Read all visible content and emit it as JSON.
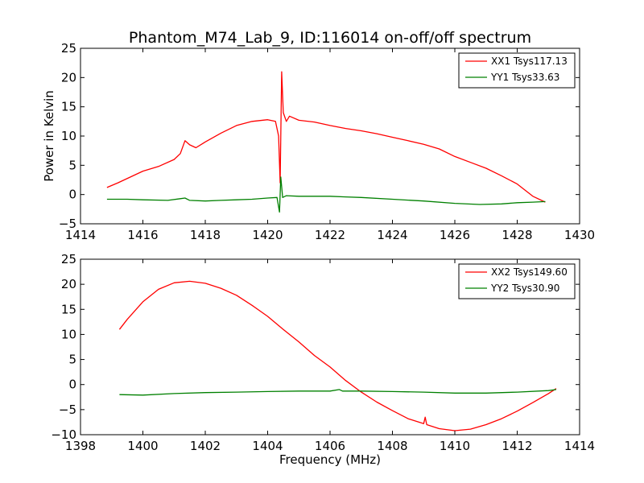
{
  "title": "Phantom_M74_Lab_9, ID:116014 on-off/off spectrum",
  "chart_data": [
    {
      "type": "line",
      "ylabel": "Power in Kelvin",
      "xlabel": "",
      "xlim": [
        1414,
        1430
      ],
      "ylim": [
        -5,
        25
      ],
      "xticks": [
        "1414",
        "1416",
        "1418",
        "1420",
        "1422",
        "1424",
        "1426",
        "1428",
        "1430"
      ],
      "yticks": [
        "−5",
        "0",
        "5",
        "10",
        "15",
        "20",
        "25"
      ],
      "legend_position": "top-right",
      "series": [
        {
          "name": "XX1 Tsys117.13",
          "color": "#ff0000",
          "points": [
            [
              1414.85,
              1.2
            ],
            [
              1415.2,
              2.0
            ],
            [
              1415.6,
              3.0
            ],
            [
              1416.0,
              4.0
            ],
            [
              1416.5,
              4.8
            ],
            [
              1417.0,
              6.0
            ],
            [
              1417.2,
              7.0
            ],
            [
              1417.35,
              9.2
            ],
            [
              1417.5,
              8.5
            ],
            [
              1417.7,
              8.0
            ],
            [
              1418.0,
              9.0
            ],
            [
              1418.5,
              10.5
            ],
            [
              1419.0,
              11.8
            ],
            [
              1419.5,
              12.5
            ],
            [
              1420.0,
              12.8
            ],
            [
              1420.25,
              12.5
            ],
            [
              1420.35,
              10.0
            ],
            [
              1420.4,
              2.0
            ],
            [
              1420.45,
              21.0
            ],
            [
              1420.5,
              14.0
            ],
            [
              1420.6,
              12.5
            ],
            [
              1420.7,
              13.4
            ],
            [
              1421.0,
              12.7
            ],
            [
              1421.5,
              12.4
            ],
            [
              1422.0,
              11.8
            ],
            [
              1422.5,
              11.3
            ],
            [
              1423.0,
              10.9
            ],
            [
              1423.5,
              10.4
            ],
            [
              1424.0,
              9.8
            ],
            [
              1424.5,
              9.2
            ],
            [
              1425.0,
              8.6
            ],
            [
              1425.5,
              7.8
            ],
            [
              1426.0,
              6.5
            ],
            [
              1426.5,
              5.5
            ],
            [
              1427.0,
              4.5
            ],
            [
              1427.5,
              3.2
            ],
            [
              1428.0,
              1.8
            ],
            [
              1428.5,
              -0.3
            ],
            [
              1428.9,
              -1.3
            ]
          ]
        },
        {
          "name": "YY1 Tsys33.63",
          "color": "#008000",
          "points": [
            [
              1414.85,
              -0.8
            ],
            [
              1415.5,
              -0.8
            ],
            [
              1416.0,
              -0.9
            ],
            [
              1416.8,
              -1.0
            ],
            [
              1417.2,
              -0.7
            ],
            [
              1417.35,
              -0.6
            ],
            [
              1417.5,
              -1.0
            ],
            [
              1418.0,
              -1.1
            ],
            [
              1418.5,
              -1.0
            ],
            [
              1419.0,
              -0.9
            ],
            [
              1419.5,
              -0.8
            ],
            [
              1420.0,
              -0.6
            ],
            [
              1420.3,
              -0.5
            ],
            [
              1420.38,
              -3.0
            ],
            [
              1420.42,
              3.0
            ],
            [
              1420.48,
              -0.5
            ],
            [
              1420.6,
              -0.2
            ],
            [
              1421.0,
              -0.3
            ],
            [
              1422.0,
              -0.3
            ],
            [
              1422.5,
              -0.4
            ],
            [
              1423.0,
              -0.5
            ],
            [
              1424.0,
              -0.8
            ],
            [
              1425.0,
              -1.1
            ],
            [
              1426.0,
              -1.5
            ],
            [
              1426.8,
              -1.7
            ],
            [
              1427.5,
              -1.6
            ],
            [
              1428.0,
              -1.4
            ],
            [
              1428.5,
              -1.3
            ],
            [
              1428.9,
              -1.2
            ]
          ]
        }
      ]
    },
    {
      "type": "line",
      "ylabel": "",
      "xlabel": "Frequency (MHz)",
      "xlim": [
        1398,
        1414
      ],
      "ylim": [
        -10,
        25
      ],
      "xticks": [
        "1398",
        "1400",
        "1402",
        "1404",
        "1406",
        "1408",
        "1410",
        "1412",
        "1414"
      ],
      "yticks": [
        "−10",
        "−5",
        "0",
        "5",
        "10",
        "15",
        "20",
        "25"
      ],
      "legend_position": "top-right",
      "series": [
        {
          "name": "XX2 Tsys149.60",
          "color": "#ff0000",
          "points": [
            [
              1399.25,
              11.0
            ],
            [
              1399.5,
              13.0
            ],
            [
              1400.0,
              16.5
            ],
            [
              1400.5,
              19.0
            ],
            [
              1401.0,
              20.3
            ],
            [
              1401.5,
              20.6
            ],
            [
              1402.0,
              20.2
            ],
            [
              1402.5,
              19.2
            ],
            [
              1403.0,
              17.8
            ],
            [
              1403.5,
              15.8
            ],
            [
              1404.0,
              13.6
            ],
            [
              1404.5,
              11.0
            ],
            [
              1405.0,
              8.5
            ],
            [
              1405.5,
              5.8
            ],
            [
              1406.0,
              3.5
            ],
            [
              1406.5,
              0.8
            ],
            [
              1407.0,
              -1.5
            ],
            [
              1407.5,
              -3.5
            ],
            [
              1408.0,
              -5.2
            ],
            [
              1408.5,
              -6.8
            ],
            [
              1409.0,
              -7.8
            ],
            [
              1409.05,
              -6.5
            ],
            [
              1409.1,
              -8.0
            ],
            [
              1409.5,
              -8.8
            ],
            [
              1410.0,
              -9.2
            ],
            [
              1410.5,
              -8.9
            ],
            [
              1411.0,
              -8.0
            ],
            [
              1411.5,
              -6.8
            ],
            [
              1412.0,
              -5.3
            ],
            [
              1412.5,
              -3.6
            ],
            [
              1413.0,
              -1.8
            ],
            [
              1413.25,
              -0.8
            ]
          ]
        },
        {
          "name": "YY2 Tsys30.90",
          "color": "#008000",
          "points": [
            [
              1399.25,
              -2.0
            ],
            [
              1400.0,
              -2.1
            ],
            [
              1401.0,
              -1.8
            ],
            [
              1402.0,
              -1.6
            ],
            [
              1403.0,
              -1.5
            ],
            [
              1404.0,
              -1.4
            ],
            [
              1405.0,
              -1.3
            ],
            [
              1406.0,
              -1.3
            ],
            [
              1406.3,
              -1.0
            ],
            [
              1406.4,
              -1.3
            ],
            [
              1407.0,
              -1.3
            ],
            [
              1408.0,
              -1.4
            ],
            [
              1409.0,
              -1.5
            ],
            [
              1410.0,
              -1.7
            ],
            [
              1411.0,
              -1.7
            ],
            [
              1412.0,
              -1.5
            ],
            [
              1413.0,
              -1.2
            ],
            [
              1413.25,
              -1.0
            ]
          ]
        }
      ]
    }
  ]
}
